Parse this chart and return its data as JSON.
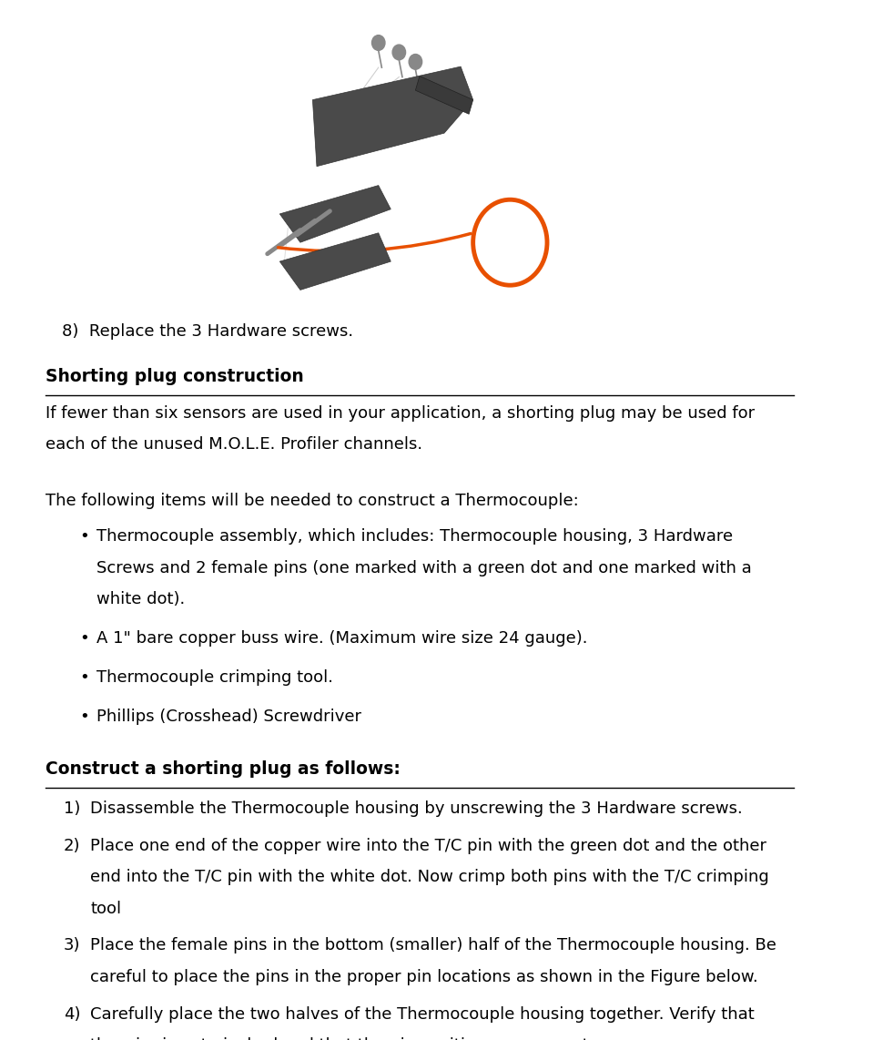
{
  "bg_color": "#ffffff",
  "step8_text": "8)  Replace the 3 Hardware screws.",
  "section1_heading": "Shorting plug construction",
  "section1_intro": "If fewer than six sensors are used in your application, a shorting plug may be used for\neach of the unused M.O.L.E. Profiler channels.",
  "section1_body": "The following items will be needed to construct a Thermocouple:",
  "bullets": [
    "Thermocouple assembly, which includes: Thermocouple housing, 3 Hardware\nScrews and 2 female pins (one marked with a green dot and one marked with a\nwhite dot).",
    "A 1\" bare copper buss wire. (Maximum wire size 24 gauge).",
    "Thermocouple crimping tool.",
    "Phillips (Crosshead) Screwdriver"
  ],
  "section2_heading": "Construct a shorting plug as follows:",
  "numbered_steps": [
    "Disassemble the Thermocouple housing by unscrewing the 3 Hardware screws.",
    "Place one end of the copper wire into the T/C pin with the green dot and the other\nend into the T/C pin with the white dot. Now crimp both pins with the T/C crimping\ntool",
    "Place the female pins in the bottom (smaller) half of the Thermocouple housing. Be\ncareful to place the pins in the proper pin locations as shown in the Figure below.",
    "Carefully place the two halves of the Thermocouple housing together. Verify that\nthe wire is not pinched and that the pin positions are correct."
  ],
  "font_size_body": 13,
  "font_size_heading": 13.5,
  "lm": 0.055,
  "rm": 0.965,
  "text_color": "#000000",
  "line_color": "#000000"
}
